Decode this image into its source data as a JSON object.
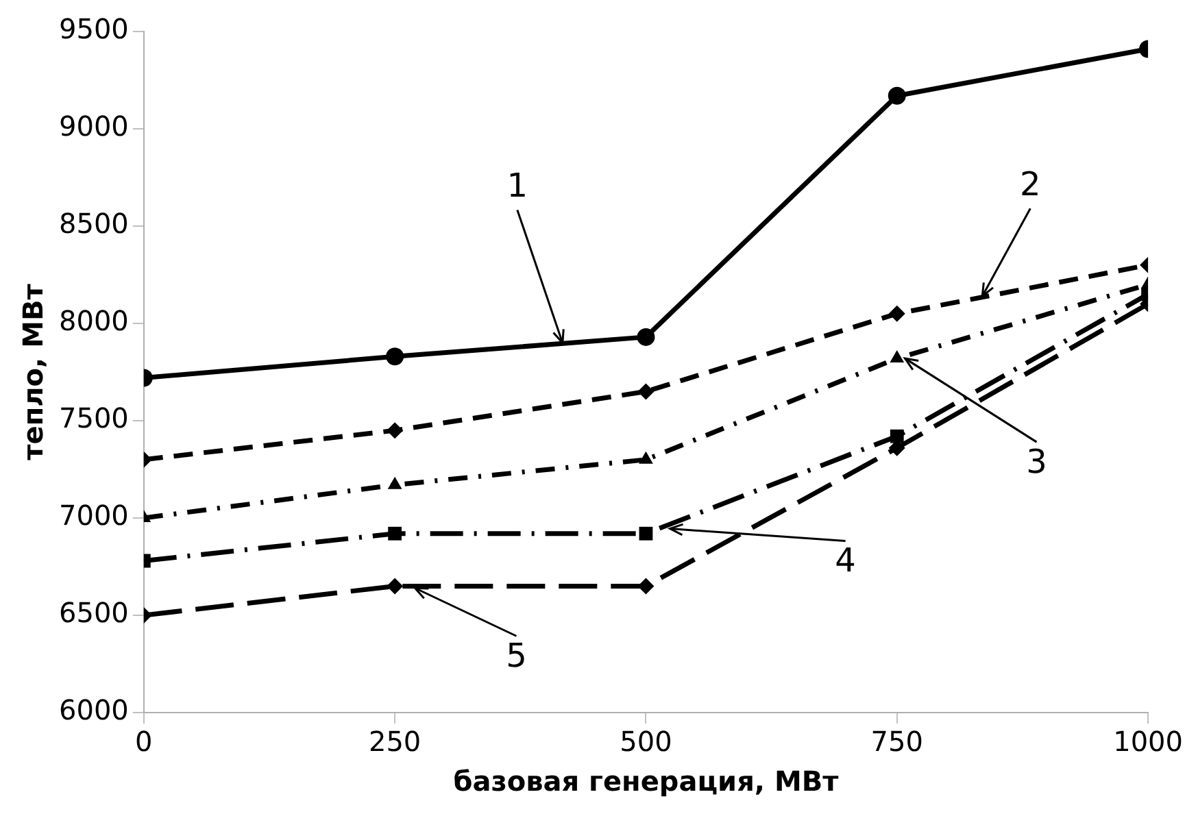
{
  "chart_data": {
    "type": "line",
    "xlabel": "базовая генерация, МВт",
    "ylabel": "тепло, МВт",
    "x": [
      0,
      250,
      500,
      750,
      1000
    ],
    "xlim": [
      0,
      1000
    ],
    "xticks": [
      0,
      250,
      500,
      750,
      1000
    ],
    "ylim": [
      6000,
      9500
    ],
    "yticks": [
      6000,
      6500,
      7000,
      7500,
      8000,
      8500,
      9000,
      9500
    ],
    "grid": false,
    "legend": false,
    "series": [
      {
        "color": "#000000",
        "marker": "circle",
        "line_style": "solid",
        "values": [
          7720,
          7830,
          7930,
          9170,
          9410
        ]
      },
      {
        "color": "#000000",
        "marker": "diamond",
        "line_style": "dashed",
        "values": [
          7300,
          7450,
          7650,
          8050,
          8300
        ]
      },
      {
        "color": "#000000",
        "marker": "triangle",
        "line_style": "dashed",
        "values": [
          7000,
          7170,
          7300,
          7820,
          8200
        ]
      },
      {
        "color": "#000000",
        "marker": "square",
        "line_style": "dashed",
        "values": [
          6780,
          6920,
          6920,
          7420,
          8150
        ]
      },
      {
        "color": "#000000",
        "marker": "diamond",
        "line_style": "dashed",
        "values": [
          6500,
          6650,
          6650,
          7360,
          8100
        ]
      }
    ],
    "annotations": [
      {
        "text": "1",
        "x": 417,
        "y": 7900
      },
      {
        "text": "2",
        "x": 835,
        "y": 8140
      },
      {
        "text": "3",
        "x": 758,
        "y": 7820
      },
      {
        "text": "4",
        "x": 524,
        "y": 6945
      },
      {
        "text": "5",
        "x": 270,
        "y": 6640
      }
    ]
  }
}
